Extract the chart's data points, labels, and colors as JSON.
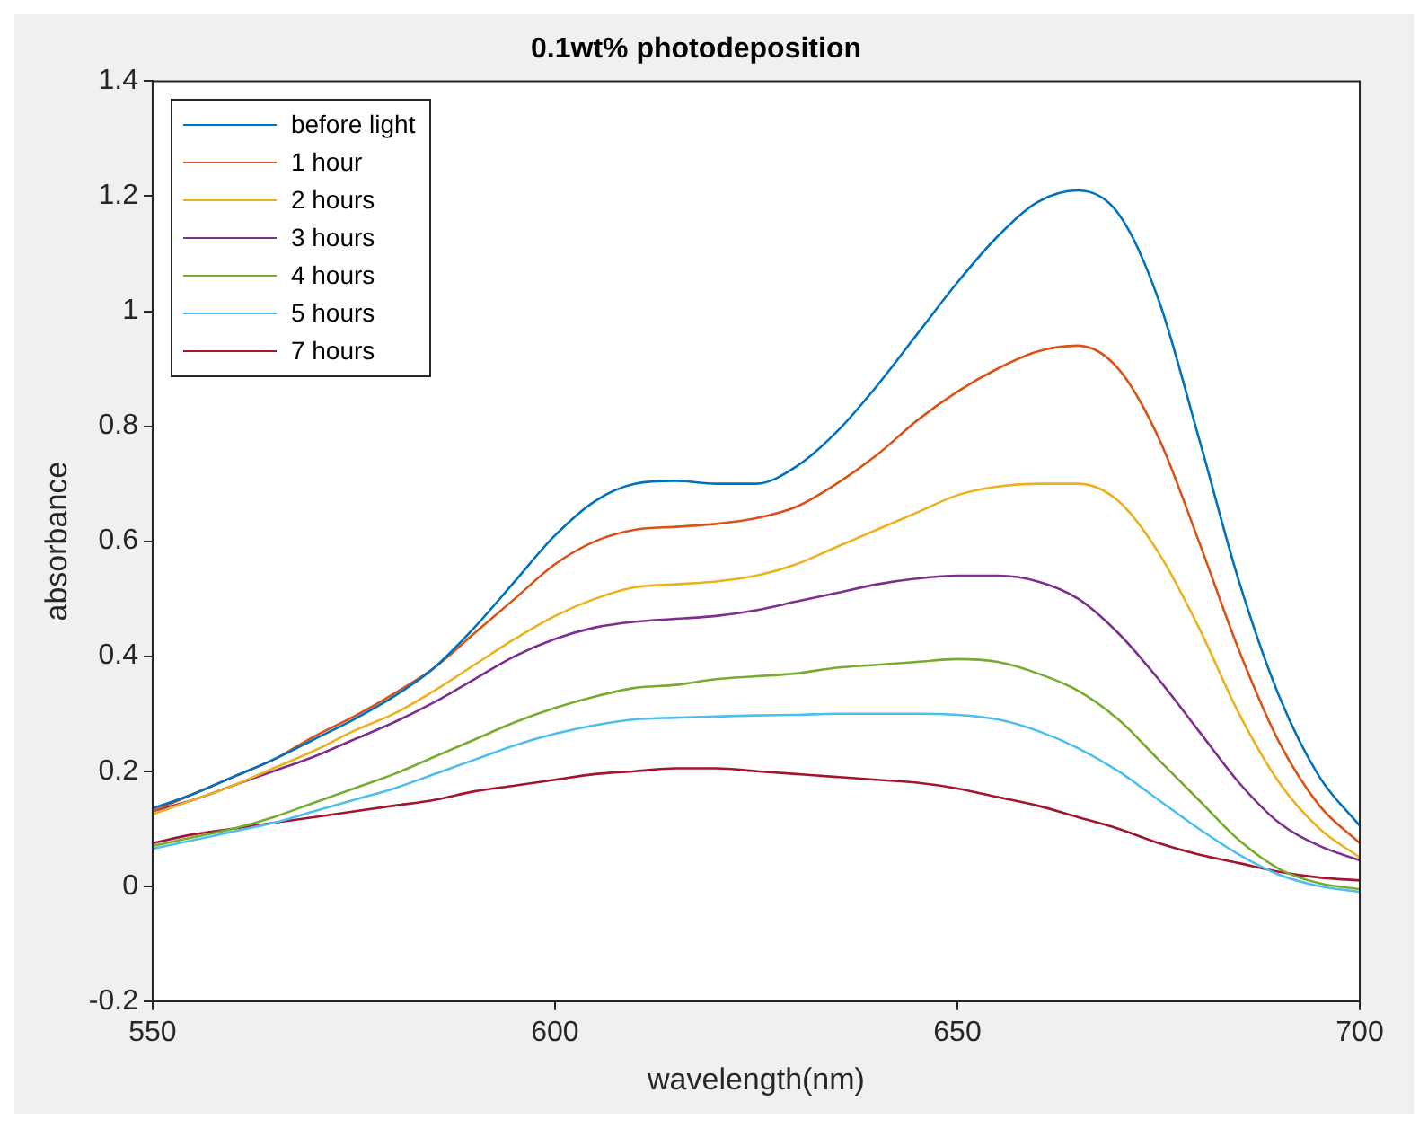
{
  "chart_data": {
    "type": "line",
    "title": "0.1wt% photodeposition",
    "xlabel": "wavelength(nm)",
    "ylabel": "absorbance",
    "x": [
      550,
      555,
      560,
      565,
      570,
      575,
      580,
      585,
      590,
      595,
      600,
      605,
      610,
      615,
      620,
      625,
      630,
      635,
      640,
      645,
      650,
      655,
      660,
      665,
      670,
      675,
      680,
      685,
      690,
      695,
      700
    ],
    "xlim": [
      550,
      700
    ],
    "xticks": [
      550,
      600,
      650,
      700
    ],
    "ylim": [
      -0.2,
      1.4
    ],
    "yticks": [
      -0.2,
      0,
      0.2,
      0.4,
      0.6,
      0.8,
      1,
      1.2,
      1.4
    ],
    "grid": false,
    "legend": "top left",
    "marker": "none",
    "line_style": "solid",
    "series": [
      {
        "name": "before light",
        "color": "#0072bd",
        "values": [
          0.135,
          0.16,
          0.19,
          0.22,
          0.255,
          0.29,
          0.33,
          0.38,
          0.45,
          0.53,
          0.61,
          0.67,
          0.7,
          0.705,
          0.7,
          0.7,
          0.73,
          0.79,
          0.87,
          0.96,
          1.05,
          1.13,
          1.19,
          1.21,
          1.17,
          1.02,
          0.78,
          0.53,
          0.33,
          0.19,
          0.105
        ]
      },
      {
        "name": "1 hour",
        "color": "#d95319",
        "values": [
          0.13,
          0.16,
          0.19,
          0.22,
          0.26,
          0.295,
          0.335,
          0.38,
          0.44,
          0.5,
          0.56,
          0.6,
          0.62,
          0.625,
          0.63,
          0.64,
          0.66,
          0.7,
          0.75,
          0.81,
          0.86,
          0.9,
          0.93,
          0.94,
          0.9,
          0.78,
          0.6,
          0.41,
          0.25,
          0.14,
          0.075
        ]
      },
      {
        "name": "2 hours",
        "color": "#edb120",
        "values": [
          0.125,
          0.15,
          0.175,
          0.205,
          0.235,
          0.27,
          0.3,
          0.34,
          0.385,
          0.43,
          0.47,
          0.5,
          0.52,
          0.525,
          0.53,
          0.54,
          0.56,
          0.59,
          0.62,
          0.65,
          0.68,
          0.695,
          0.7,
          0.7,
          0.67,
          0.58,
          0.45,
          0.3,
          0.18,
          0.1,
          0.05
        ]
      },
      {
        "name": "3 hours",
        "color": "#7e2f8e",
        "values": [
          0.13,
          0.15,
          0.175,
          0.2,
          0.225,
          0.255,
          0.285,
          0.32,
          0.36,
          0.4,
          0.43,
          0.45,
          0.46,
          0.465,
          0.47,
          0.48,
          0.495,
          0.51,
          0.525,
          0.535,
          0.54,
          0.54,
          0.53,
          0.5,
          0.44,
          0.36,
          0.27,
          0.18,
          0.11,
          0.07,
          0.045
        ]
      },
      {
        "name": "4 hours",
        "color": "#77ac30",
        "values": [
          0.07,
          0.085,
          0.1,
          0.12,
          0.145,
          0.17,
          0.195,
          0.225,
          0.255,
          0.285,
          0.31,
          0.33,
          0.345,
          0.35,
          0.36,
          0.365,
          0.37,
          0.38,
          0.385,
          0.39,
          0.395,
          0.39,
          0.37,
          0.34,
          0.29,
          0.22,
          0.15,
          0.08,
          0.03,
          0.005,
          -0.005
        ]
      },
      {
        "name": "5 hours",
        "color": "#4dbeee",
        "values": [
          0.065,
          0.08,
          0.095,
          0.11,
          0.13,
          0.15,
          0.17,
          0.195,
          0.22,
          0.245,
          0.265,
          0.28,
          0.29,
          0.293,
          0.295,
          0.297,
          0.298,
          0.3,
          0.3,
          0.3,
          0.298,
          0.29,
          0.27,
          0.24,
          0.2,
          0.15,
          0.1,
          0.055,
          0.02,
          0.0,
          -0.01
        ]
      },
      {
        "name": "7 hours",
        "color": "#a2142f",
        "values": [
          0.075,
          0.09,
          0.1,
          0.11,
          0.12,
          0.13,
          0.14,
          0.15,
          0.165,
          0.175,
          0.185,
          0.195,
          0.2,
          0.205,
          0.205,
          0.2,
          0.195,
          0.19,
          0.185,
          0.18,
          0.17,
          0.155,
          0.14,
          0.12,
          0.1,
          0.075,
          0.055,
          0.04,
          0.025,
          0.015,
          0.01
        ]
      }
    ]
  }
}
